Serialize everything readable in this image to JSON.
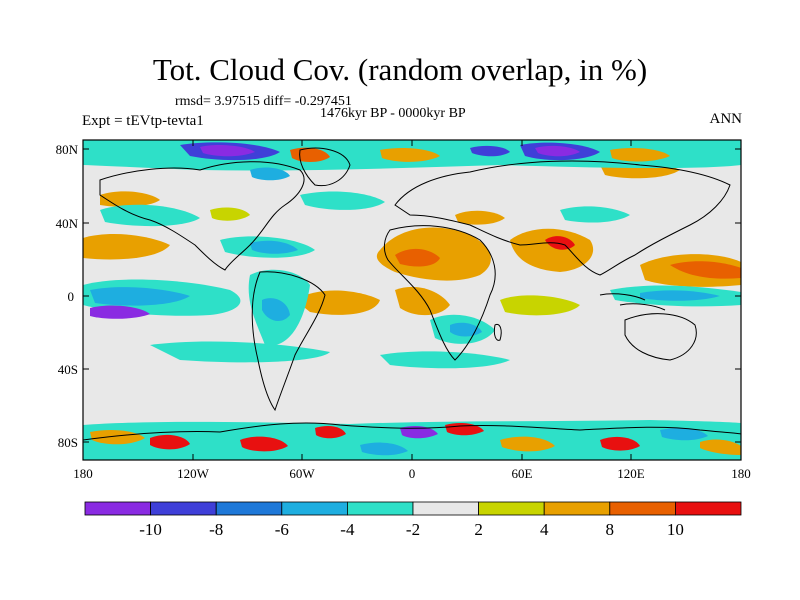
{
  "title": "Tot. Cloud Cov. (random overlap, in %)",
  "stats": "rmsd= 3.97515 diff= -0.297451",
  "period": "1476kyr BP - 0000kyr BP",
  "experiment": "Expt = tEVtp-tevta1",
  "season": "ANN",
  "lat_ticks": [
    "80N",
    "40N",
    "0",
    "40S",
    "80S"
  ],
  "lon_ticks": [
    "180",
    "120W",
    "60W",
    "0",
    "60E",
    "120E",
    "180"
  ],
  "colorbar": {
    "labels": [
      "-10",
      "-8",
      "-6",
      "-4",
      "-2",
      "2",
      "4",
      "8",
      "10"
    ],
    "colors": [
      "#8a2be2",
      "#3f3fd8",
      "#1e78d8",
      "#1eaee0",
      "#2ee0c8",
      "#e8e8e8",
      "#c8d400",
      "#e8a000",
      "#e86000",
      "#e81010"
    ]
  },
  "background_color": "#e8e8e8"
}
